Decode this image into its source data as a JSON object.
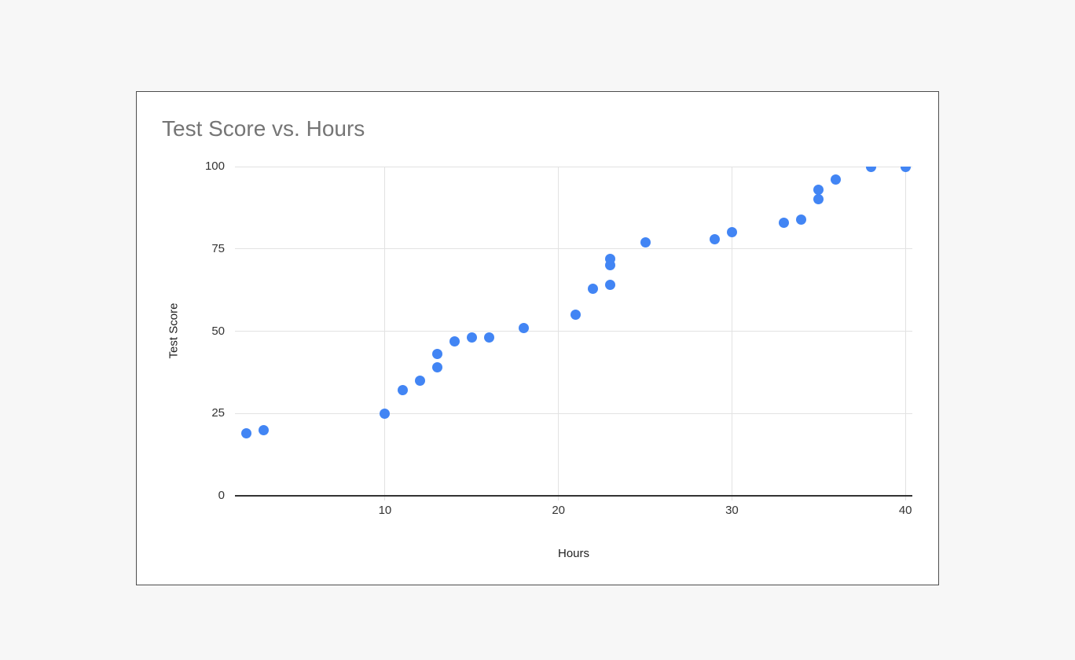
{
  "chart_data": {
    "type": "scatter",
    "title": "Test Score vs. Hours",
    "xlabel": "Hours",
    "ylabel": "Test Score",
    "x_ticks": [
      10,
      20,
      30,
      40
    ],
    "y_ticks": [
      0,
      25,
      50,
      75,
      100
    ],
    "x_range": [
      1.35,
      40.4
    ],
    "y_range": [
      0,
      100
    ],
    "grid": true,
    "legend": "none",
    "point_color": "#4285f4",
    "series": [
      {
        "name": "Test Score",
        "points": [
          [
            2,
            19
          ],
          [
            3,
            20
          ],
          [
            10,
            25
          ],
          [
            11,
            32
          ],
          [
            12,
            35
          ],
          [
            13,
            39
          ],
          [
            13,
            43
          ],
          [
            14,
            47
          ],
          [
            15,
            48
          ],
          [
            16,
            48
          ],
          [
            18,
            51
          ],
          [
            21,
            55
          ],
          [
            22,
            63
          ],
          [
            23,
            64
          ],
          [
            23,
            70
          ],
          [
            23,
            72
          ],
          [
            25,
            77
          ],
          [
            29,
            78
          ],
          [
            30,
            80
          ],
          [
            33,
            83
          ],
          [
            34,
            84
          ],
          [
            35,
            90
          ],
          [
            35,
            93
          ],
          [
            36,
            96
          ],
          [
            38,
            100
          ],
          [
            40,
            100
          ]
        ]
      }
    ]
  },
  "colors": {
    "page_background": "#f7f7f7",
    "card_background": "#ffffff",
    "card_border": "#4d4d4d",
    "title_text": "#757575",
    "axis_title_text": "#212121",
    "tick_text": "#333333",
    "gridline": "#e2e2e2",
    "axis_line": "#333333",
    "point": "#4285f4"
  }
}
